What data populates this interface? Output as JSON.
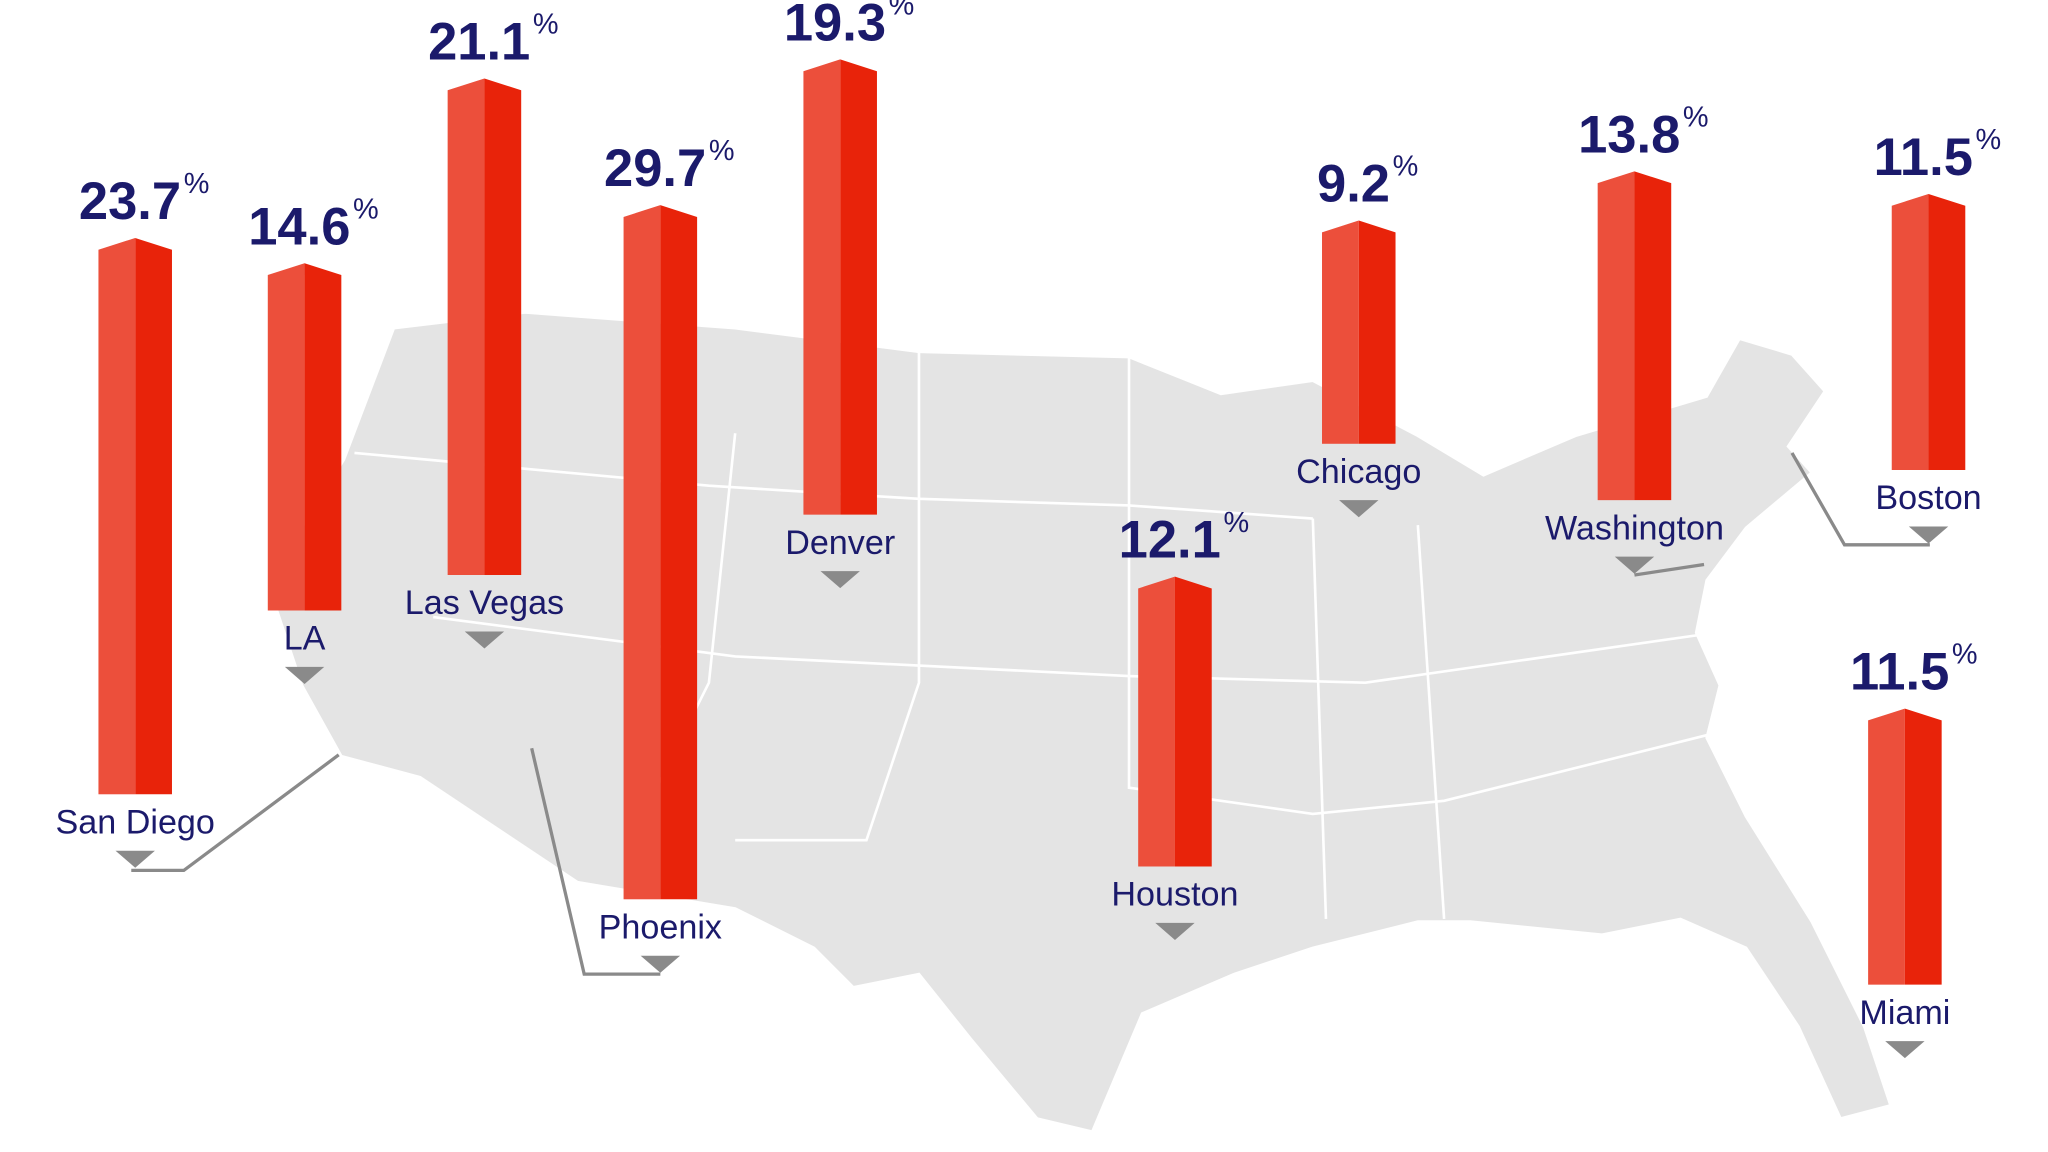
{
  "chart_data": {
    "type": "bar",
    "categories": [
      "San Diego",
      "LA",
      "Las Vegas",
      "Phoenix",
      "Denver",
      "Houston",
      "Chicago",
      "Washington",
      "Boston",
      "Miami"
    ],
    "values": [
      23.7,
      14.6,
      21.1,
      29.7,
      19.3,
      12.1,
      9.2,
      13.8,
      11.5,
      11.5
    ],
    "value_suffix": "%",
    "color": "#e8230a"
  }
}
